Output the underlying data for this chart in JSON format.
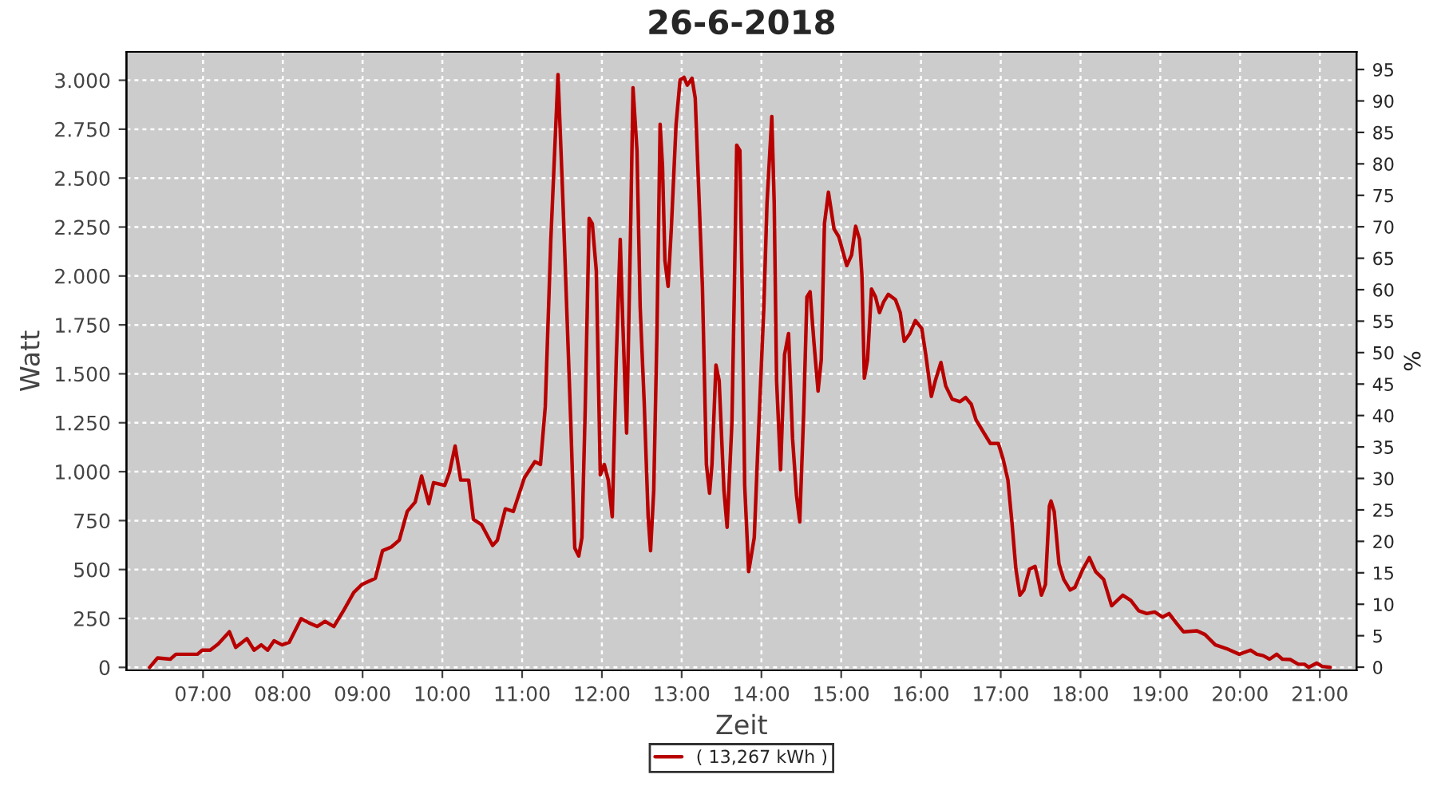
{
  "chart_data": {
    "type": "line",
    "title": "26-6-2018",
    "xlabel": "Zeit",
    "ylabel": "Watt",
    "y2label": "%",
    "x": [
      6.33,
      6.43,
      6.59,
      6.66,
      6.93,
      6.99,
      7.09,
      7.19,
      7.33,
      7.41,
      7.55,
      7.64,
      7.73,
      7.81,
      7.89,
      7.99,
      8.08,
      8.23,
      8.33,
      8.43,
      8.53,
      8.64,
      8.76,
      8.89,
      8.99,
      9.16,
      9.25,
      9.36,
      9.46,
      9.56,
      9.66,
      9.74,
      9.83,
      9.89,
      10.03,
      10.09,
      10.16,
      10.23,
      10.33,
      10.39,
      10.49,
      10.63,
      10.69,
      10.79,
      10.89,
      11.03,
      11.16,
      11.23,
      11.29,
      11.36,
      11.45,
      11.51,
      11.61,
      11.66,
      11.71,
      11.75,
      11.79,
      11.84,
      11.88,
      11.93,
      11.98,
      12.03,
      12.08,
      12.13,
      12.18,
      12.23,
      12.26,
      12.31,
      12.36,
      12.39,
      12.44,
      12.48,
      12.53,
      12.58,
      12.61,
      12.65,
      12.69,
      12.73,
      12.76,
      12.79,
      12.83,
      12.87,
      12.93,
      12.98,
      13.03,
      13.07,
      13.13,
      13.17,
      13.21,
      13.26,
      13.31,
      13.35,
      13.38,
      13.43,
      13.47,
      13.53,
      13.57,
      13.63,
      13.66,
      13.69,
      13.73,
      13.76,
      13.79,
      13.84,
      13.91,
      13.96,
      14.03,
      14.07,
      14.13,
      14.16,
      14.19,
      14.24,
      14.29,
      14.34,
      14.39,
      14.44,
      14.48,
      14.53,
      14.57,
      14.61,
      14.66,
      14.71,
      14.75,
      14.79,
      14.84,
      14.91,
      14.97,
      15.07,
      15.13,
      15.18,
      15.23,
      15.26,
      15.29,
      15.33,
      15.38,
      15.43,
      15.48,
      15.53,
      15.59,
      15.68,
      15.74,
      15.79,
      15.86,
      15.93,
      16.01,
      16.06,
      16.13,
      16.18,
      16.25,
      16.31,
      16.39,
      16.49,
      16.56,
      16.63,
      16.69,
      16.79,
      16.87,
      16.97,
      17.03,
      17.09,
      17.14,
      17.19,
      17.24,
      17.29,
      17.36,
      17.43,
      17.47,
      17.51,
      17.56,
      17.61,
      17.63,
      17.67,
      17.73,
      17.79,
      17.87,
      17.93,
      18.03,
      18.11,
      18.19,
      18.29,
      18.39,
      18.53,
      18.63,
      18.73,
      18.83,
      18.93,
      19.03,
      19.11,
      19.21,
      19.29,
      19.46,
      19.56,
      19.69,
      19.83,
      19.99,
      20.13,
      20.21,
      20.29,
      20.37,
      20.46,
      20.53,
      20.63,
      20.73,
      20.81,
      20.86,
      20.96,
      21.03,
      21.13
    ],
    "series": [
      {
        "name": "( 13,267 kWh )",
        "color": "#b80000",
        "values": [
          0,
          48,
          42,
          67,
          67,
          88,
          88,
          120,
          182,
          102,
          147,
          88,
          115,
          88,
          136,
          115,
          128,
          249,
          227,
          209,
          235,
          209,
          289,
          383,
          423,
          455,
          596,
          615,
          650,
          797,
          845,
          978,
          836,
          944,
          930,
          997,
          1131,
          957,
          957,
          756,
          730,
          623,
          650,
          810,
          797,
          970,
          1051,
          1037,
          1331,
          2187,
          3029,
          2400,
          1251,
          610,
          569,
          663,
          1305,
          2294,
          2267,
          2027,
          984,
          1037,
          957,
          770,
          1572,
          2187,
          1786,
          1197,
          2240,
          2962,
          2641,
          1839,
          1358,
          770,
          596,
          904,
          1706,
          2775,
          2561,
          2080,
          1947,
          2240,
          2775,
          3002,
          3015,
          2975,
          3010,
          2909,
          2481,
          1947,
          1037,
          890,
          1037,
          1545,
          1465,
          904,
          716,
          1251,
          1919,
          2668,
          2641,
          1893,
          930,
          489,
          663,
          1171,
          1839,
          2374,
          2815,
          2374,
          1465,
          1010,
          1598,
          1706,
          1171,
          877,
          743,
          1305,
          1893,
          1919,
          1652,
          1412,
          1572,
          2267,
          2428,
          2240,
          2200,
          2053,
          2107,
          2254,
          2187,
          2000,
          1478,
          1572,
          1933,
          1893,
          1813,
          1866,
          1906,
          1879,
          1813,
          1666,
          1706,
          1772,
          1732,
          1598,
          1385,
          1465,
          1558,
          1438,
          1371,
          1358,
          1379,
          1345,
          1265,
          1197,
          1144,
          1144,
          1064,
          957,
          743,
          502,
          369,
          395,
          502,
          516,
          449,
          369,
          423,
          824,
          850,
          797,
          529,
          449,
          395,
          409,
          502,
          561,
          489,
          449,
          315,
          369,
          342,
          289,
          275,
          283,
          257,
          275,
          222,
          182,
          187,
          168,
          115,
          96,
          67,
          88,
          67,
          60,
          42,
          67,
          42,
          40,
          16,
          16,
          0,
          22,
          5,
          0
        ]
      }
    ],
    "xlim": [
      6.04,
      21.46
    ],
    "xticks": [
      {
        "value": 7,
        "label": "07:00"
      },
      {
        "value": 8,
        "label": "08:00"
      },
      {
        "value": 9,
        "label": "09:00"
      },
      {
        "value": 10,
        "label": "10:00"
      },
      {
        "value": 11,
        "label": "11:00"
      },
      {
        "value": 12,
        "label": "12:00"
      },
      {
        "value": 13,
        "label": "13:00"
      },
      {
        "value": 14,
        "label": "14:00"
      },
      {
        "value": 15,
        "label": "15:00"
      },
      {
        "value": 16,
        "label": "16:00"
      },
      {
        "value": 17,
        "label": "17:00"
      },
      {
        "value": 18,
        "label": "18:00"
      },
      {
        "value": 19,
        "label": "19:00"
      },
      {
        "value": 20,
        "label": "20:00"
      },
      {
        "value": 21,
        "label": "21:00"
      }
    ],
    "ylim": [
      -15,
      3145
    ],
    "yticks": [
      0,
      250,
      500,
      750,
      {
        "value": 1000,
        "label": "1.000"
      },
      {
        "value": 1250,
        "label": "1.250"
      },
      {
        "value": 1500,
        "label": "1.500"
      },
      {
        "value": 1750,
        "label": "1.750"
      },
      {
        "value": 2000,
        "label": "2.000"
      },
      {
        "value": 2250,
        "label": "2.250"
      },
      {
        "value": 2500,
        "label": "2.500"
      },
      {
        "value": 2750,
        "label": "2.750"
      },
      {
        "value": 3000,
        "label": "3.000"
      }
    ],
    "y2lim": [
      -0.5,
      97.8
    ],
    "y2ticks": [
      0,
      5,
      10,
      15,
      20,
      25,
      30,
      35,
      40,
      45,
      50,
      55,
      60,
      65,
      70,
      75,
      80,
      85,
      90,
      95
    ],
    "grid": true,
    "legend": "bottom",
    "marker": "none",
    "line_style": "solid"
  }
}
